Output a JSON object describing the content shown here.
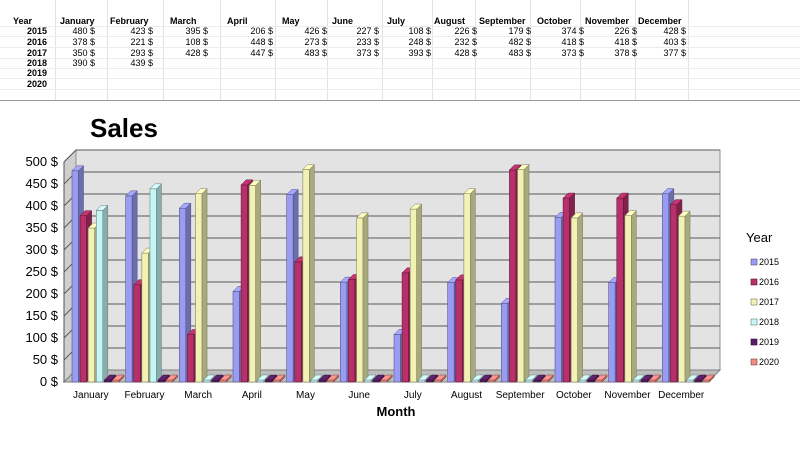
{
  "sheet": {
    "header": [
      "Year",
      "January",
      "February",
      "March",
      "April",
      "May",
      "June",
      "July",
      "August",
      "September",
      "October",
      "November",
      "December"
    ],
    "rows": [
      {
        "year": "2015",
        "values": [
          "480 $",
          "423 $",
          "395 $",
          "206 $",
          "426 $",
          "227 $",
          "108 $",
          "226 $",
          "179 $",
          "374 $",
          "226 $",
          "428 $"
        ]
      },
      {
        "year": "2016",
        "values": [
          "378 $",
          "221 $",
          "108 $",
          "448 $",
          "273 $",
          "233 $",
          "248 $",
          "232 $",
          "482 $",
          "418 $",
          "418 $",
          "403 $"
        ]
      },
      {
        "year": "2017",
        "values": [
          "350 $",
          "293 $",
          "428 $",
          "447 $",
          "483 $",
          "373 $",
          "393 $",
          "428 $",
          "483 $",
          "373 $",
          "378 $",
          "377 $"
        ]
      },
      {
        "year": "2018",
        "values": [
          "390 $",
          "439 $",
          "",
          "",
          "",
          "",
          "",
          "",
          "",
          "",
          "",
          ""
        ]
      },
      {
        "year": "2019",
        "values": [
          "",
          "",
          "",
          "",
          "",
          "",
          "",
          "",
          "",
          "",
          "",
          ""
        ]
      },
      {
        "year": "2020",
        "values": [
          "",
          "",
          "",
          "",
          "",
          "",
          "",
          "",
          "",
          "",
          "",
          ""
        ]
      }
    ]
  },
  "chart_data": {
    "type": "bar",
    "title": "Sales",
    "xlabel": "Month",
    "ylabel": "",
    "ylim": [
      0,
      500
    ],
    "yticks": [
      "0 $",
      "50 $",
      "100 $",
      "150 $",
      "200 $",
      "250 $",
      "300 $",
      "350 $",
      "400 $",
      "450 $",
      "500 $"
    ],
    "categories": [
      "January",
      "February",
      "March",
      "April",
      "May",
      "June",
      "July",
      "August",
      "September",
      "October",
      "November",
      "December"
    ],
    "legend_title": "Year",
    "legend_position": "right",
    "grid": true,
    "series": [
      {
        "name": "2015",
        "color": "#9a9cf4",
        "values": [
          480,
          423,
          395,
          206,
          426,
          227,
          108,
          226,
          179,
          374,
          226,
          428
        ]
      },
      {
        "name": "2016",
        "color": "#b7306a",
        "values": [
          378,
          221,
          108,
          448,
          273,
          233,
          248,
          232,
          482,
          418,
          418,
          403
        ]
      },
      {
        "name": "2017",
        "color": "#f2f2b4",
        "values": [
          350,
          293,
          428,
          447,
          483,
          373,
          393,
          428,
          483,
          373,
          378,
          377
        ]
      },
      {
        "name": "2018",
        "color": "#c5f5f5",
        "values": [
          390,
          439,
          0,
          0,
          0,
          0,
          0,
          0,
          0,
          0,
          0,
          0
        ]
      },
      {
        "name": "2019",
        "color": "#5a1f66",
        "values": [
          0,
          0,
          0,
          0,
          0,
          0,
          0,
          0,
          0,
          0,
          0,
          0
        ]
      },
      {
        "name": "2020",
        "color": "#f08a84",
        "values": [
          0,
          0,
          0,
          0,
          0,
          0,
          0,
          0,
          0,
          0,
          0,
          0
        ]
      }
    ]
  }
}
